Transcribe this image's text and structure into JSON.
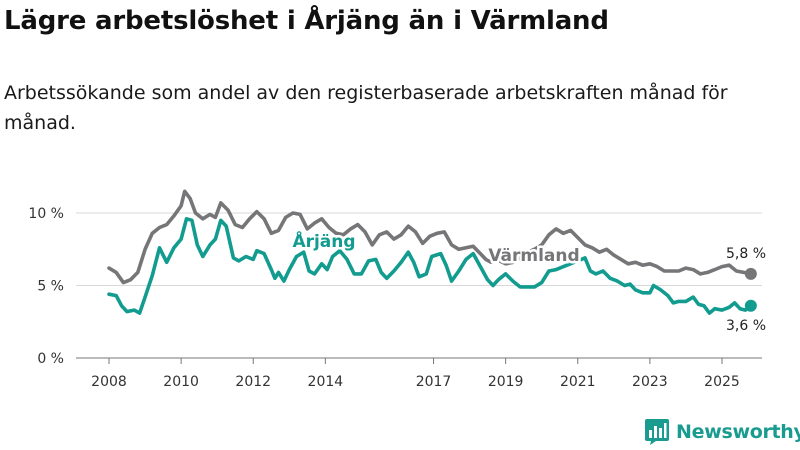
{
  "title": "Lägre arbetslöshet i Årjäng än i Värmland",
  "subtitle": "Arbetssökande som andel av den registerbaserade arbetskraften månad för månad.",
  "brand": {
    "name": "Newsworthy",
    "icon": "bar-chart-logo-icon",
    "color": "#1a9b8f"
  },
  "chart_data": {
    "type": "line",
    "title": "Lägre arbetslöshet i Årjäng än i Värmland",
    "xlabel": "",
    "ylabel": "",
    "x_ticks": [
      "2008",
      "2010",
      "2012",
      "2014",
      "2017",
      "2019",
      "2021",
      "2023",
      "2025"
    ],
    "y_ticks": [
      "0 %",
      "5 %",
      "10 %"
    ],
    "ylim": [
      0,
      11.5
    ],
    "xlim": [
      2007.6,
      2026.3
    ],
    "grid": true,
    "series": [
      {
        "name": "Värmland",
        "color": "#767578",
        "end_label": "5,8 %",
        "name_label": "Värmland",
        "points": [
          [
            2008.0,
            6.2
          ],
          [
            2008.2,
            5.9
          ],
          [
            2008.4,
            5.2
          ],
          [
            2008.6,
            5.4
          ],
          [
            2008.8,
            5.9
          ],
          [
            2009.0,
            7.5
          ],
          [
            2009.2,
            8.6
          ],
          [
            2009.4,
            9.0
          ],
          [
            2009.6,
            9.2
          ],
          [
            2009.8,
            9.8
          ],
          [
            2010.0,
            10.5
          ],
          [
            2010.1,
            11.5
          ],
          [
            2010.25,
            11.0
          ],
          [
            2010.4,
            10.0
          ],
          [
            2010.6,
            9.6
          ],
          [
            2010.8,
            9.9
          ],
          [
            2010.95,
            9.7
          ],
          [
            2011.1,
            10.7
          ],
          [
            2011.3,
            10.2
          ],
          [
            2011.5,
            9.2
          ],
          [
            2011.7,
            9.0
          ],
          [
            2011.9,
            9.6
          ],
          [
            2012.1,
            10.1
          ],
          [
            2012.3,
            9.6
          ],
          [
            2012.5,
            8.6
          ],
          [
            2012.7,
            8.8
          ],
          [
            2012.9,
            9.7
          ],
          [
            2013.1,
            10.0
          ],
          [
            2013.3,
            9.9
          ],
          [
            2013.5,
            8.9
          ],
          [
            2013.7,
            9.3
          ],
          [
            2013.9,
            9.6
          ],
          [
            2014.1,
            9.0
          ],
          [
            2014.3,
            8.6
          ],
          [
            2014.5,
            8.5
          ],
          [
            2014.7,
            8.9
          ],
          [
            2014.9,
            9.2
          ],
          [
            2015.1,
            8.7
          ],
          [
            2015.3,
            7.8
          ],
          [
            2015.5,
            8.5
          ],
          [
            2015.7,
            8.7
          ],
          [
            2015.9,
            8.2
          ],
          [
            2016.1,
            8.5
          ],
          [
            2016.3,
            9.1
          ],
          [
            2016.5,
            8.7
          ],
          [
            2016.7,
            7.9
          ],
          [
            2016.9,
            8.4
          ],
          [
            2017.1,
            8.6
          ],
          [
            2017.3,
            8.7
          ],
          [
            2017.5,
            7.8
          ],
          [
            2017.7,
            7.5
          ],
          [
            2017.9,
            7.6
          ],
          [
            2018.1,
            7.7
          ],
          [
            2018.3,
            7.2
          ],
          [
            2018.45,
            6.8
          ],
          [
            2018.6,
            6.6
          ],
          [
            2018.75,
            6.8
          ],
          [
            2019.0,
            6.5
          ],
          [
            2019.2,
            6.6
          ],
          [
            2019.4,
            6.9
          ],
          [
            2019.6,
            7.3
          ],
          [
            2019.8,
            7.5
          ],
          [
            2020.0,
            7.8
          ],
          [
            2020.2,
            8.5
          ],
          [
            2020.4,
            8.9
          ],
          [
            2020.6,
            8.6
          ],
          [
            2020.8,
            8.8
          ],
          [
            2021.0,
            8.3
          ],
          [
            2021.2,
            7.8
          ],
          [
            2021.4,
            7.6
          ],
          [
            2021.6,
            7.3
          ],
          [
            2021.8,
            7.5
          ],
          [
            2022.0,
            7.1
          ],
          [
            2022.2,
            6.8
          ],
          [
            2022.4,
            6.5
          ],
          [
            2022.6,
            6.6
          ],
          [
            2022.8,
            6.4
          ],
          [
            2023.0,
            6.5
          ],
          [
            2023.2,
            6.3
          ],
          [
            2023.4,
            6.0
          ],
          [
            2023.6,
            6.0
          ],
          [
            2023.8,
            6.0
          ],
          [
            2024.0,
            6.2
          ],
          [
            2024.2,
            6.1
          ],
          [
            2024.4,
            5.8
          ],
          [
            2024.6,
            5.9
          ],
          [
            2024.8,
            6.1
          ],
          [
            2025.0,
            6.3
          ],
          [
            2025.2,
            6.4
          ],
          [
            2025.4,
            6.0
          ],
          [
            2025.6,
            5.9
          ],
          [
            2025.8,
            5.8
          ]
        ]
      },
      {
        "name": "Årjäng",
        "color": "#129b8f",
        "end_label": "3,6 %",
        "name_label": "Årjäng",
        "points": [
          [
            2008.0,
            4.4
          ],
          [
            2008.2,
            4.3
          ],
          [
            2008.35,
            3.6
          ],
          [
            2008.5,
            3.2
          ],
          [
            2008.7,
            3.3
          ],
          [
            2008.85,
            3.1
          ],
          [
            2009.0,
            4.2
          ],
          [
            2009.2,
            5.7
          ],
          [
            2009.4,
            7.6
          ],
          [
            2009.6,
            6.6
          ],
          [
            2009.8,
            7.6
          ],
          [
            2010.0,
            8.2
          ],
          [
            2010.15,
            9.6
          ],
          [
            2010.3,
            9.5
          ],
          [
            2010.45,
            7.8
          ],
          [
            2010.6,
            7.0
          ],
          [
            2010.8,
            7.8
          ],
          [
            2010.95,
            8.2
          ],
          [
            2011.1,
            9.5
          ],
          [
            2011.25,
            9.1
          ],
          [
            2011.45,
            6.9
          ],
          [
            2011.6,
            6.7
          ],
          [
            2011.8,
            7.0
          ],
          [
            2012.0,
            6.8
          ],
          [
            2012.1,
            7.4
          ],
          [
            2012.3,
            7.2
          ],
          [
            2012.5,
            6.1
          ],
          [
            2012.6,
            5.5
          ],
          [
            2012.7,
            5.9
          ],
          [
            2012.85,
            5.3
          ],
          [
            2013.0,
            6.1
          ],
          [
            2013.2,
            7.0
          ],
          [
            2013.4,
            7.3
          ],
          [
            2013.55,
            6.0
          ],
          [
            2013.7,
            5.8
          ],
          [
            2013.9,
            6.5
          ],
          [
            2014.05,
            6.1
          ],
          [
            2014.2,
            7.0
          ],
          [
            2014.4,
            7.4
          ],
          [
            2014.6,
            6.8
          ],
          [
            2014.8,
            5.8
          ],
          [
            2015.0,
            5.8
          ],
          [
            2015.2,
            6.7
          ],
          [
            2015.4,
            6.8
          ],
          [
            2015.55,
            5.9
          ],
          [
            2015.7,
            5.5
          ],
          [
            2015.9,
            6.0
          ],
          [
            2016.1,
            6.6
          ],
          [
            2016.3,
            7.3
          ],
          [
            2016.45,
            6.6
          ],
          [
            2016.6,
            5.6
          ],
          [
            2016.8,
            5.8
          ],
          [
            2016.95,
            7.0
          ],
          [
            2017.2,
            7.2
          ],
          [
            2017.35,
            6.4
          ],
          [
            2017.5,
            5.3
          ],
          [
            2017.7,
            6.0
          ],
          [
            2017.9,
            6.8
          ],
          [
            2018.1,
            7.2
          ],
          [
            2018.3,
            6.3
          ],
          [
            2018.5,
            5.4
          ],
          [
            2018.65,
            5.0
          ],
          [
            2018.8,
            5.4
          ],
          [
            2019.0,
            5.8
          ],
          [
            2019.2,
            5.3
          ],
          [
            2019.4,
            4.9
          ],
          [
            2019.6,
            4.9
          ],
          [
            2019.8,
            4.9
          ],
          [
            2020.0,
            5.2
          ],
          [
            2020.2,
            6.0
          ],
          [
            2020.4,
            6.1
          ],
          [
            2021.2,
            6.9
          ],
          [
            2021.35,
            6.0
          ],
          [
            2021.5,
            5.8
          ],
          [
            2021.7,
            6.0
          ],
          [
            2021.9,
            5.5
          ],
          [
            2022.1,
            5.3
          ],
          [
            2022.3,
            5.0
          ],
          [
            2022.45,
            5.1
          ],
          [
            2022.6,
            4.7
          ],
          [
            2022.8,
            4.5
          ],
          [
            2023.0,
            4.5
          ],
          [
            2023.1,
            5.0
          ],
          [
            2023.3,
            4.7
          ],
          [
            2023.5,
            4.3
          ],
          [
            2023.65,
            3.8
          ],
          [
            2023.8,
            3.9
          ],
          [
            2024.0,
            3.9
          ],
          [
            2024.2,
            4.2
          ],
          [
            2024.35,
            3.7
          ],
          [
            2024.5,
            3.6
          ],
          [
            2024.65,
            3.1
          ],
          [
            2024.8,
            3.4
          ],
          [
            2025.0,
            3.3
          ],
          [
            2025.2,
            3.5
          ],
          [
            2025.35,
            3.8
          ],
          [
            2025.5,
            3.4
          ],
          [
            2025.65,
            3.3
          ],
          [
            2025.8,
            3.6
          ]
        ]
      }
    ]
  }
}
